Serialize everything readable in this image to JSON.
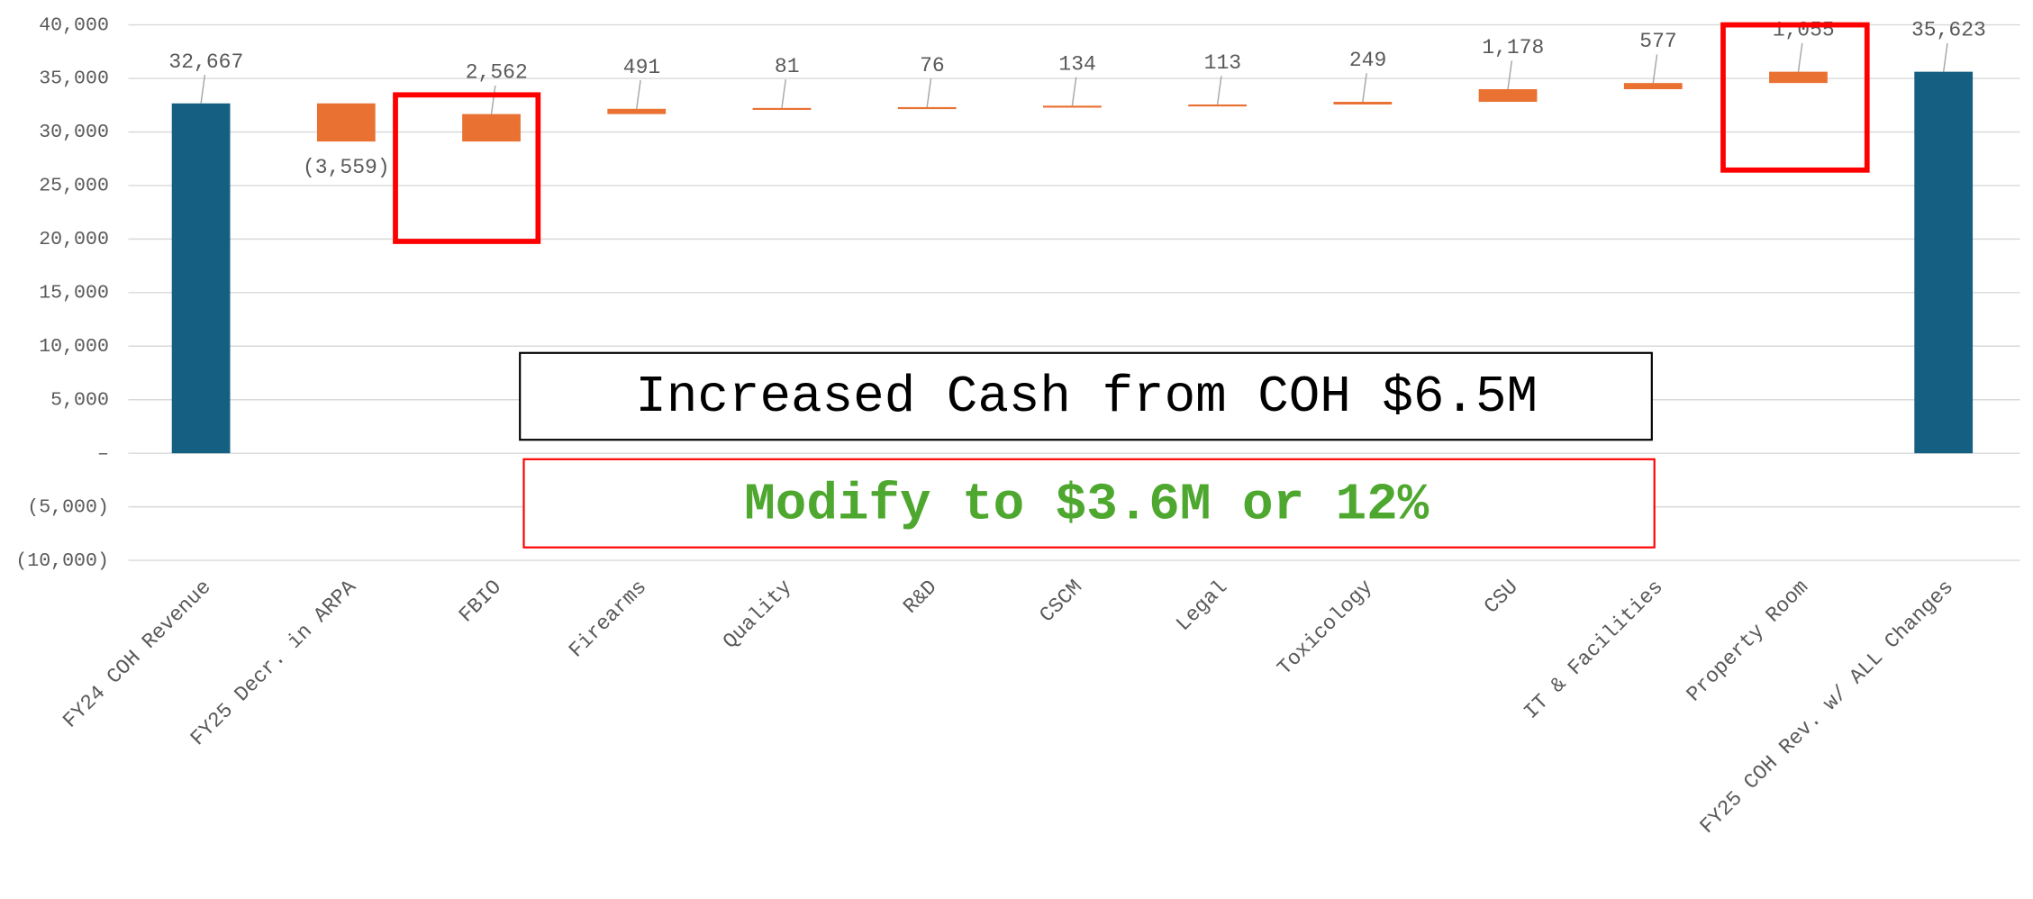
{
  "chart_data": {
    "type": "waterfall",
    "categories": [
      "FY24 COH Revenue",
      "FY25 Decr. in  ARPA",
      "FBIO",
      "Firearms",
      "Quality",
      "R&D",
      "CSCM",
      "Legal",
      "Toxicology",
      "CSU",
      "IT & Facilities",
      "Property Room",
      "FY25 COH Rev. w/ ALL  Changes"
    ],
    "values": [
      32667,
      -3559,
      2562,
      491,
      81,
      76,
      134,
      113,
      249,
      1178,
      577,
      1055,
      35623
    ],
    "value_labels": [
      "32,667",
      "(3,559)",
      "2,562",
      "491",
      "81",
      "76",
      "134",
      "113",
      "249",
      "1,178",
      "577",
      "1,055",
      "35,623"
    ],
    "measure": [
      "total",
      "relative",
      "relative",
      "relative",
      "relative",
      "relative",
      "relative",
      "relative",
      "relative",
      "relative",
      "relative",
      "relative",
      "total"
    ],
    "total_color": "#156082",
    "change_color": "#e97132",
    "ylim": [
      -10000,
      40000
    ],
    "yticks": [
      {
        "value": -10000,
        "label": "(10,000)"
      },
      {
        "value": -5000,
        "label": "(5,000)"
      },
      {
        "value": 0,
        "label": "–"
      },
      {
        "value": 5000,
        "label": "5,000"
      },
      {
        "value": 10000,
        "label": "10,000"
      },
      {
        "value": 15000,
        "label": "15,000"
      },
      {
        "value": 20000,
        "label": "20,000"
      },
      {
        "value": 25000,
        "label": "25,000"
      },
      {
        "value": 30000,
        "label": "30,000"
      },
      {
        "value": 35000,
        "label": "35,000"
      },
      {
        "value": 40000,
        "label": "40,000"
      }
    ],
    "grid": true,
    "annotations": [
      "Increased Cash from COH $6.5M",
      "Modify to  $3.6M or 12%"
    ]
  }
}
